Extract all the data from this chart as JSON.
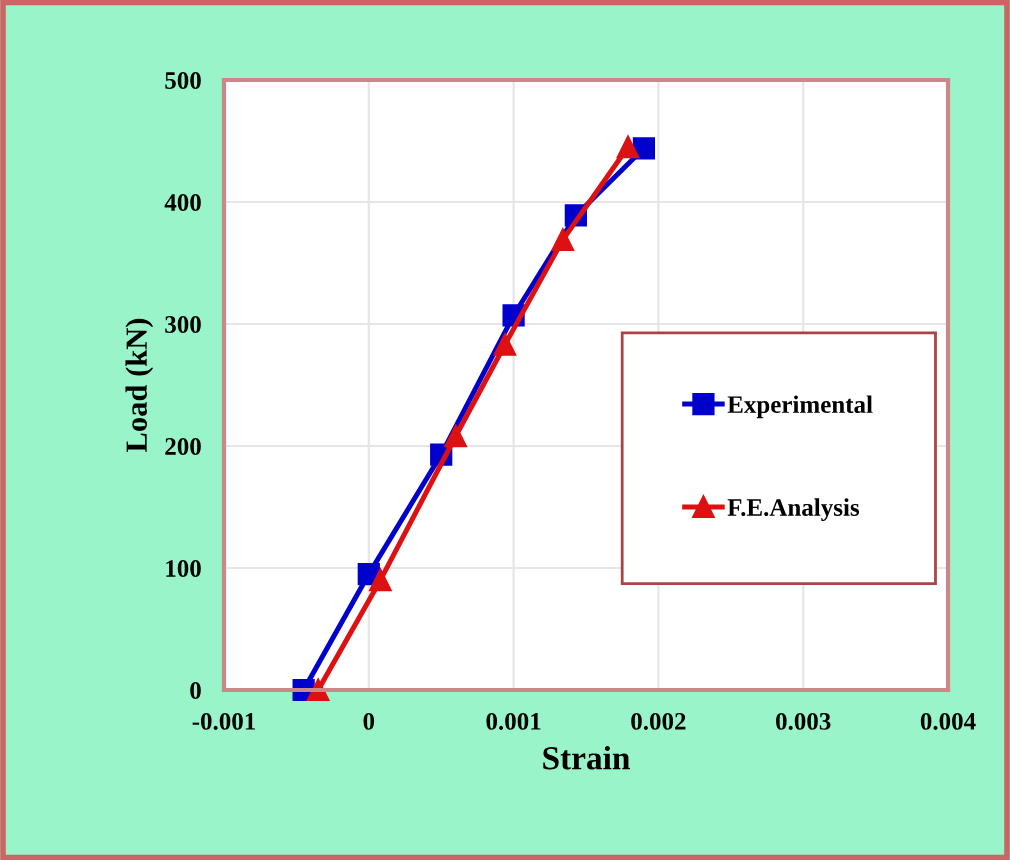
{
  "chart_data": {
    "type": "line",
    "xlabel": "Strain",
    "ylabel": "Load (kN)",
    "xlim": [
      -0.001,
      0.004
    ],
    "xticks": [
      -0.001,
      0,
      0.001,
      0.002,
      0.003,
      0.004
    ],
    "ylim": [
      0,
      500
    ],
    "yticks": [
      0,
      100,
      200,
      300,
      400,
      500
    ],
    "grid": true,
    "legend": "right",
    "series": [
      {
        "name": "Experimental",
        "color": "#0000cc",
        "marker": "square",
        "x": [
          -0.00045,
          0,
          0.0005,
          0.001,
          0.00143,
          0.0019
        ],
        "values": [
          0,
          95,
          193,
          307,
          389,
          444
        ]
      },
      {
        "name": "F.E.Analysis",
        "color": "#dd1111",
        "marker": "triangle",
        "x": [
          -0.00035,
          8e-05,
          0.0006,
          0.00094,
          0.00134,
          0.00179
        ],
        "values": [
          0,
          90,
          208,
          283,
          369,
          445
        ]
      }
    ]
  }
}
